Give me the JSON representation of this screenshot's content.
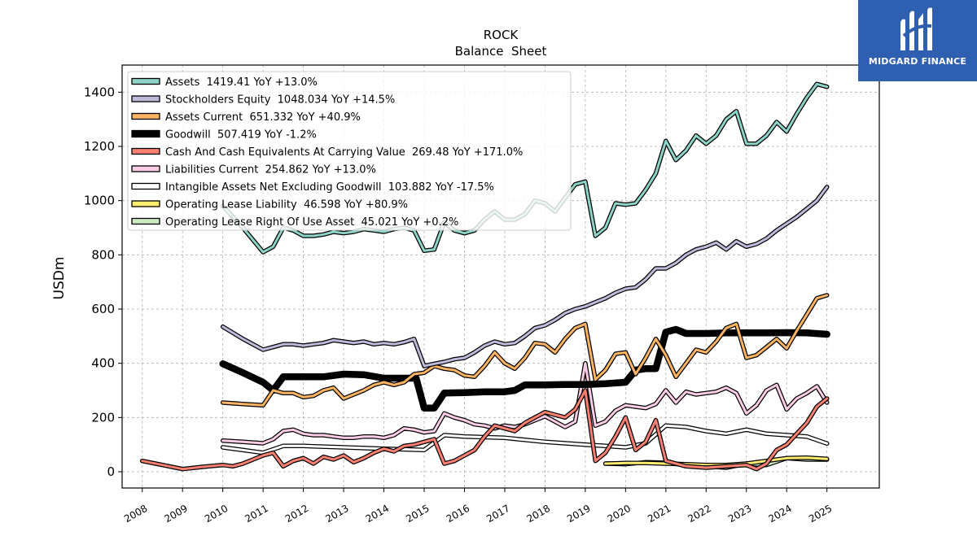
{
  "logo": {
    "text": "MIDGARD FINANCE",
    "background": "#2f5fb0"
  },
  "chart_data": {
    "type": "line",
    "title": "ROCK",
    "subtitle": "Balance  Sheet",
    "xlabel": "",
    "ylabel": "USDm",
    "xlim": [
      2007.5,
      2026.3
    ],
    "ylim": [
      -60,
      1500
    ],
    "yticks": [
      0,
      200,
      400,
      600,
      800,
      1000,
      1200,
      1400
    ],
    "xticks": [
      "2008",
      "2009",
      "2010",
      "2011",
      "2012",
      "2013",
      "2014",
      "2015",
      "2016",
      "2017",
      "2018",
      "2019",
      "2020",
      "2021",
      "2022",
      "2023",
      "2024",
      "2025"
    ],
    "grid": true,
    "legend_position": "top-left",
    "series": [
      {
        "name": "Assets",
        "legend": "Assets  1419.41 YoY +13.0%",
        "color": "#8dd3c7",
        "width": 3,
        "x": [
          2010,
          2010.5,
          2011,
          2011.25,
          2011.5,
          2011.75,
          2012,
          2012.25,
          2012.5,
          2012.75,
          2013,
          2013.25,
          2013.5,
          2013.75,
          2014,
          2014.25,
          2014.5,
          2014.75,
          2015,
          2015.25,
          2015.5,
          2015.75,
          2016,
          2016.25,
          2016.5,
          2016.75,
          2017,
          2017.25,
          2017.5,
          2017.75,
          2018,
          2018.25,
          2018.5,
          2018.75,
          2019,
          2019.25,
          2019.5,
          2019.75,
          2020,
          2020.25,
          2020.5,
          2020.75,
          2021,
          2021.25,
          2021.5,
          2021.75,
          2022,
          2022.25,
          2022.5,
          2022.75,
          2023,
          2023.25,
          2023.5,
          2023.75,
          2024,
          2024.25,
          2024.5,
          2024.75,
          2025
        ],
        "values": [
          980,
          900,
          810,
          830,
          900,
          890,
          870,
          870,
          875,
          885,
          880,
          885,
          895,
          890,
          885,
          895,
          900,
          890,
          815,
          820,
          920,
          890,
          880,
          890,
          930,
          960,
          930,
          930,
          950,
          1000,
          990,
          960,
          1010,
          1060,
          1070,
          870,
          900,
          990,
          985,
          990,
          1040,
          1100,
          1220,
          1150,
          1185,
          1240,
          1210,
          1240,
          1300,
          1330,
          1210,
          1210,
          1240,
          1290,
          1255,
          1320,
          1380,
          1430,
          1420
        ]
      },
      {
        "name": "Stockholders Equity",
        "legend": "Stockholders Equity  1048.034 YoY +14.5%",
        "color": "#bebada",
        "width": 3,
        "x": [
          2010,
          2010.5,
          2011,
          2011.25,
          2011.5,
          2011.75,
          2012,
          2012.25,
          2012.5,
          2012.75,
          2013,
          2013.25,
          2013.5,
          2013.75,
          2014,
          2014.25,
          2014.5,
          2014.75,
          2015,
          2015.25,
          2015.5,
          2015.75,
          2016,
          2016.25,
          2016.5,
          2016.75,
          2017,
          2017.25,
          2017.5,
          2017.75,
          2018,
          2018.25,
          2018.5,
          2018.75,
          2019,
          2019.25,
          2019.5,
          2019.75,
          2020,
          2020.25,
          2020.5,
          2020.75,
          2021,
          2021.25,
          2021.5,
          2021.75,
          2022,
          2022.25,
          2022.5,
          2022.75,
          2023,
          2023.25,
          2023.5,
          2023.75,
          2024,
          2024.25,
          2024.5,
          2024.75,
          2025
        ],
        "values": [
          535,
          490,
          450,
          460,
          470,
          470,
          465,
          470,
          475,
          485,
          480,
          475,
          480,
          470,
          475,
          470,
          478,
          490,
          390,
          398,
          405,
          415,
          420,
          440,
          465,
          480,
          470,
          475,
          500,
          530,
          540,
          560,
          585,
          600,
          610,
          625,
          640,
          660,
          675,
          680,
          710,
          750,
          750,
          770,
          800,
          820,
          830,
          845,
          820,
          850,
          830,
          840,
          860,
          890,
          915,
          940,
          970,
          1000,
          1050
        ]
      },
      {
        "name": "Assets Current",
        "legend": "Assets Current  651.332 YoY +40.9%",
        "color": "#fdb462",
        "width": 3,
        "x": [
          2010,
          2010.5,
          2011,
          2011.25,
          2011.5,
          2011.75,
          2012,
          2012.25,
          2012.5,
          2012.75,
          2013,
          2013.25,
          2013.5,
          2013.75,
          2014,
          2014.25,
          2014.5,
          2014.75,
          2015,
          2015.25,
          2015.5,
          2015.75,
          2016,
          2016.25,
          2016.5,
          2016.75,
          2017,
          2017.25,
          2017.5,
          2017.75,
          2018,
          2018.25,
          2018.5,
          2018.75,
          2019,
          2019.25,
          2019.5,
          2019.75,
          2020,
          2020.25,
          2020.5,
          2020.75,
          2021,
          2021.25,
          2021.5,
          2021.75,
          2022,
          2022.25,
          2022.5,
          2022.75,
          2023,
          2023.25,
          2023.5,
          2023.75,
          2024,
          2024.25,
          2024.5,
          2024.75,
          2025
        ],
        "values": [
          255,
          250,
          245,
          300,
          290,
          290,
          275,
          280,
          300,
          310,
          270,
          285,
          300,
          320,
          330,
          320,
          330,
          360,
          365,
          390,
          380,
          375,
          355,
          350,
          390,
          440,
          400,
          380,
          420,
          475,
          470,
          440,
          490,
          530,
          545,
          340,
          375,
          435,
          440,
          360,
          420,
          490,
          430,
          350,
          400,
          450,
          440,
          480,
          530,
          545,
          420,
          430,
          460,
          490,
          455,
          520,
          580,
          640,
          651
        ]
      },
      {
        "name": "Goodwill",
        "legend": "Goodwill  507.419 YoY -1.2%",
        "color": "#000000",
        "width": 6,
        "x": [
          2010,
          2010.5,
          2011,
          2011.25,
          2011.5,
          2012,
          2012.5,
          2013,
          2013.5,
          2014,
          2014.5,
          2014.8,
          2015,
          2015.25,
          2015.5,
          2016,
          2016.5,
          2017,
          2017.25,
          2017.5,
          2018,
          2018.5,
          2019,
          2019.5,
          2020,
          2020.25,
          2020.5,
          2020.75,
          2021,
          2021.25,
          2021.5,
          2022,
          2022.5,
          2023,
          2023.5,
          2024,
          2024.5,
          2025
        ],
        "values": [
          398,
          365,
          330,
          300,
          350,
          350,
          350,
          360,
          358,
          345,
          345,
          345,
          235,
          235,
          290,
          292,
          295,
          295,
          300,
          320,
          320,
          322,
          322,
          325,
          330,
          375,
          380,
          380,
          515,
          525,
          510,
          510,
          512,
          512,
          512,
          513,
          512,
          507
        ]
      },
      {
        "name": "Cash And Cash Equivalents At Carrying Value",
        "legend": "Cash And Cash Equivalents At Carrying Value  269.48 YoY +171.0%",
        "color": "#fb8072",
        "width": 3,
        "x": [
          2008,
          2008.5,
          2009,
          2009.5,
          2010,
          2010.25,
          2010.5,
          2011,
          2011.25,
          2011.5,
          2011.75,
          2012,
          2012.25,
          2012.5,
          2012.75,
          2013,
          2013.25,
          2013.5,
          2013.75,
          2014,
          2014.25,
          2014.5,
          2014.75,
          2015,
          2015.25,
          2015.5,
          2015.75,
          2016,
          2016.25,
          2016.5,
          2016.75,
          2017,
          2017.25,
          2017.5,
          2017.75,
          2018,
          2018.25,
          2018.5,
          2018.75,
          2019,
          2019.25,
          2019.5,
          2019.75,
          2020,
          2020.25,
          2020.5,
          2020.75,
          2021,
          2021.5,
          2022,
          2022.5,
          2023,
          2023.25,
          2023.5,
          2023.75,
          2024,
          2024.25,
          2024.5,
          2024.75,
          2025
        ],
        "values": [
          40,
          25,
          10,
          18,
          25,
          20,
          30,
          60,
          70,
          20,
          40,
          50,
          30,
          55,
          45,
          60,
          35,
          50,
          70,
          85,
          75,
          95,
          100,
          110,
          120,
          30,
          40,
          60,
          80,
          130,
          170,
          160,
          150,
          180,
          200,
          220,
          210,
          200,
          230,
          300,
          40,
          70,
          130,
          200,
          80,
          110,
          190,
          40,
          20,
          15,
          20,
          25,
          10,
          30,
          80,
          100,
          140,
          180,
          240,
          270
        ]
      },
      {
        "name": "Liabilities Current",
        "legend": "Liabilities Current  254.862 YoY +13.0%",
        "color": "#fccde5",
        "width": 3,
        "x": [
          2010,
          2010.5,
          2011,
          2011.25,
          2011.5,
          2011.75,
          2012,
          2012.25,
          2012.5,
          2012.75,
          2013,
          2013.25,
          2013.5,
          2013.75,
          2014,
          2014.25,
          2014.5,
          2014.75,
          2015,
          2015.25,
          2015.5,
          2015.75,
          2016,
          2016.25,
          2016.5,
          2016.75,
          2017,
          2017.25,
          2017.5,
          2017.75,
          2018,
          2018.25,
          2018.5,
          2018.75,
          2019,
          2019.25,
          2019.5,
          2019.75,
          2020,
          2020.25,
          2020.5,
          2020.75,
          2021,
          2021.25,
          2021.5,
          2021.75,
          2022,
          2022.25,
          2022.5,
          2022.75,
          2023,
          2023.25,
          2023.5,
          2023.75,
          2024,
          2024.25,
          2024.5,
          2024.75,
          2025
        ],
        "values": [
          115,
          110,
          105,
          120,
          150,
          155,
          140,
          135,
          135,
          130,
          125,
          125,
          130,
          130,
          125,
          135,
          160,
          155,
          145,
          150,
          215,
          200,
          190,
          175,
          170,
          160,
          170,
          165,
          175,
          190,
          205,
          185,
          165,
          185,
          400,
          170,
          185,
          225,
          245,
          240,
          235,
          250,
          300,
          255,
          295,
          285,
          290,
          295,
          310,
          290,
          215,
          245,
          300,
          320,
          230,
          270,
          290,
          315,
          255
        ]
      },
      {
        "name": "Intangible Assets Net Excluding Goodwill",
        "legend": "Intangible Assets Net Excluding Goodwill  103.882 YoY -17.5%",
        "color": "#ffffff",
        "width": 3,
        "x": [
          2010,
          2011,
          2011.5,
          2012,
          2013,
          2014,
          2015,
          2015.5,
          2016,
          2017,
          2018,
          2019,
          2019.5,
          2020,
          2020.5,
          2021,
          2021.5,
          2022,
          2022.5,
          2023,
          2023.5,
          2024,
          2024.5,
          2025
        ],
        "values": [
          90,
          70,
          95,
          95,
          90,
          85,
          80,
          135,
          130,
          125,
          110,
          100,
          95,
          90,
          105,
          170,
          165,
          150,
          140,
          155,
          140,
          135,
          130,
          104
        ]
      },
      {
        "name": "Operating Lease Liability",
        "legend": "Operating Lease Liability  46.598 YoY +80.9%",
        "color": "#ffed6f",
        "width": 3,
        "x": [
          2019.5,
          2020,
          2020.5,
          2021,
          2021.5,
          2022,
          2022.5,
          2023,
          2023.5,
          2024,
          2024.5,
          2025
        ],
        "values": [
          30,
          32,
          32,
          30,
          28,
          25,
          25,
          30,
          40,
          50,
          52,
          47
        ]
      },
      {
        "name": "Operating Lease Right Of Use Asset",
        "legend": "Operating Lease Right Of Use Asset  45.021 YoY +0.2%",
        "color": "#ccebc5",
        "width": 3,
        "x": [
          2019.5,
          2020,
          2020.5,
          2021,
          2021.5,
          2022,
          2022.5,
          2023,
          2023.5,
          2024,
          2024.5,
          2025
        ],
        "values": [
          30,
          28,
          35,
          33,
          25,
          20,
          15,
          30,
          25,
          50,
          45,
          45
        ]
      }
    ]
  }
}
